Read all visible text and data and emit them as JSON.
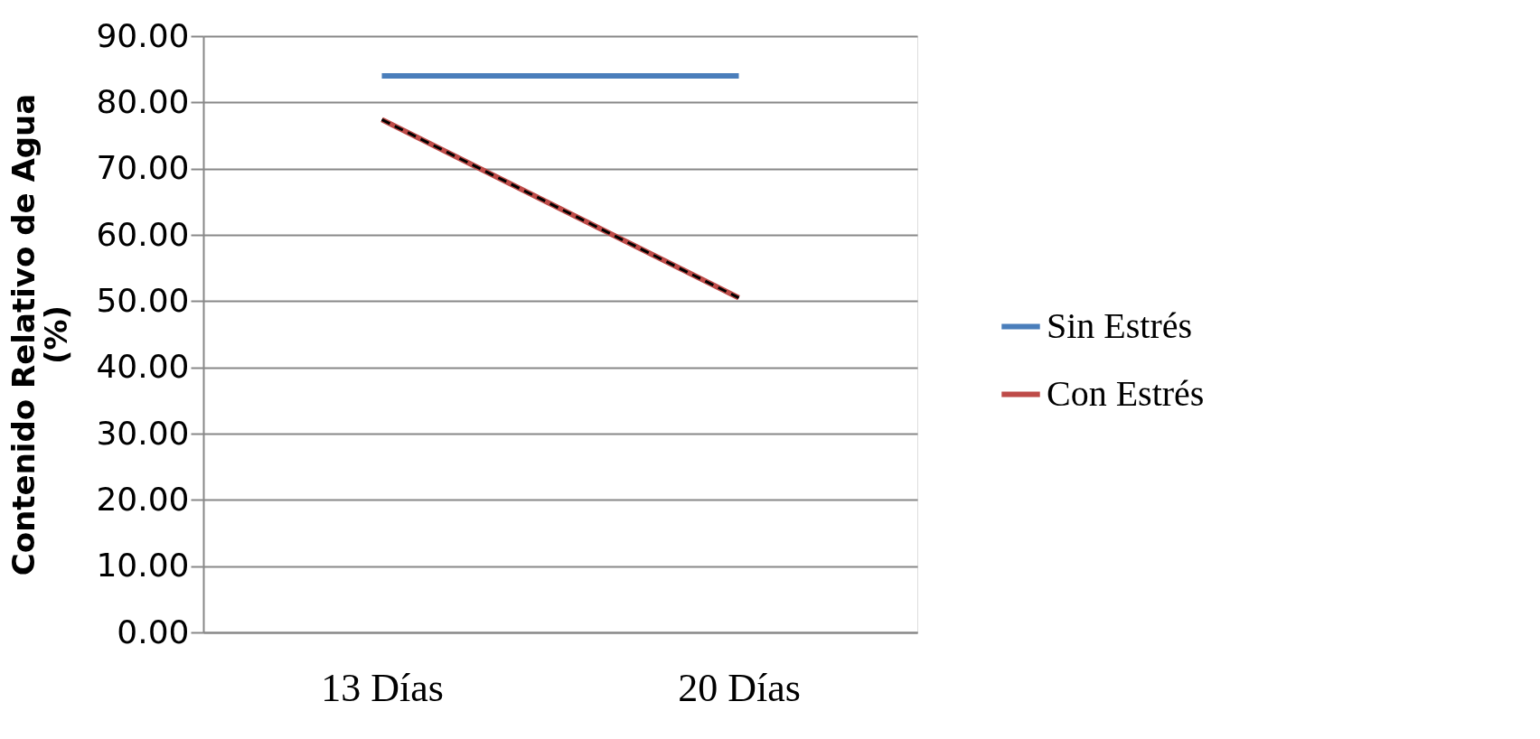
{
  "chart_data": {
    "type": "line",
    "categories": [
      "13 Días",
      "20 Días"
    ],
    "ylabel": "Contenido Relativo de Agua (%)",
    "series": [
      {
        "name": "Sin Estrés",
        "color": "#4a7ebb",
        "values": [
          84.0,
          84.0
        ]
      },
      {
        "name": "Con Estrés",
        "color": "#be4b48",
        "values": [
          77.4,
          50.5
        ]
      },
      {
        "type": "line",
        "color": "#000000",
        "line_style": "dashed",
        "values": [
          77.4,
          50.5
        ]
      }
    ],
    "ylim": [
      0,
      90
    ],
    "yticks": [
      {
        "value": 0,
        "label": "0.00"
      },
      {
        "value": 10,
        "label": "10.00"
      },
      {
        "value": 20,
        "label": "20.00"
      },
      {
        "value": 30,
        "label": "30.00"
      },
      {
        "value": 40,
        "label": "40.00"
      },
      {
        "value": 50,
        "label": "50.00"
      },
      {
        "value": 60,
        "label": "60.00"
      },
      {
        "value": 70,
        "label": "70.00"
      },
      {
        "value": 80,
        "label": "80.00"
      },
      {
        "value": 90,
        "label": "90.00"
      }
    ],
    "grid": "y",
    "legend": "right",
    "marker": "none",
    "line_style": "solid"
  }
}
